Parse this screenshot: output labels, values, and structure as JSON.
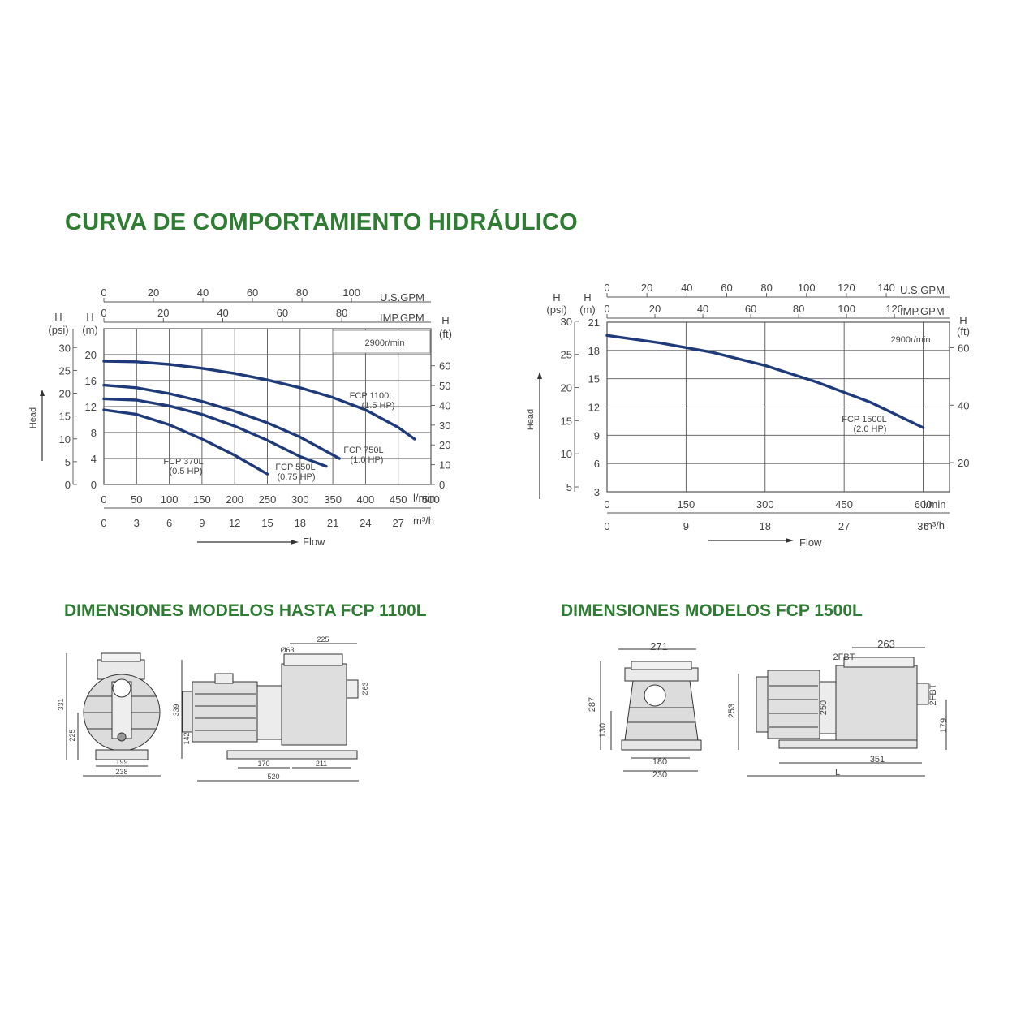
{
  "main_title": "CURVA DE COMPORTAMIENTO HIDRÁULICO",
  "dim_title_left": "DIMENSIONES MODELOS HASTA FCP 1100L",
  "dim_title_right": "DIMENSIONES MODELOS FCP 1500L",
  "colors": {
    "title": "#2e7d32",
    "curve": "#1f3a7a",
    "grid": "#555555"
  },
  "chart_data": [
    {
      "type": "line",
      "speed_label": "2900r/min",
      "xlabel": "Flow",
      "ylabel": "Head",
      "x_unit": "l/min",
      "xlim": [
        0,
        500
      ],
      "ylim": [
        0,
        24
      ],
      "x_ticks_lmin": [
        "0",
        "50",
        "100",
        "150",
        "200",
        "250",
        "300",
        "350",
        "400",
        "450",
        "500"
      ],
      "x_ticks_m3h": [
        "0",
        "3",
        "6",
        "9",
        "12",
        "15",
        "18",
        "21",
        "24",
        "27"
      ],
      "x_ticks_m3h_unit": "m³/h",
      "x_ticks_usgpm": [
        "0",
        "20",
        "40",
        "60",
        "80",
        "100"
      ],
      "x_ticks_usgpm_unit": "U.S.GPM",
      "x_ticks_impgpm": [
        "0",
        "20",
        "40",
        "60",
        "80"
      ],
      "x_ticks_impgpm_unit": "IMP.GPM",
      "y_ticks_m": [
        "0",
        "4",
        "8",
        "12",
        "16",
        "20"
      ],
      "y_ticks_psi": [
        "0",
        "5",
        "10",
        "15",
        "20",
        "25",
        "30"
      ],
      "y_ticks_ft": [
        "0",
        "10",
        "20",
        "30",
        "40",
        "50",
        "60"
      ],
      "y_unit_m": "(m)",
      "y_unit_psi": "(psi)",
      "y_unit_ft": "(ft)",
      "y_letter": "H",
      "series": [
        {
          "name": "FCP 370L",
          "hp": "(0.5 HP)",
          "x": [
            0,
            50,
            100,
            150,
            200,
            250
          ],
          "y": [
            11.5,
            10.8,
            9.2,
            7.0,
            4.5,
            1.6
          ]
        },
        {
          "name": "FCP 550L",
          "hp": "(0.75 HP)",
          "x": [
            0,
            50,
            100,
            150,
            200,
            250,
            300,
            340
          ],
          "y": [
            13.2,
            13.0,
            12.1,
            10.8,
            9.0,
            6.8,
            4.3,
            2.8
          ]
        },
        {
          "name": "FCP 750L",
          "hp": "(1.0 HP)",
          "x": [
            0,
            50,
            100,
            150,
            200,
            250,
            300,
            360
          ],
          "y": [
            15.3,
            14.9,
            14.0,
            12.8,
            11.3,
            9.5,
            7.3,
            4.0
          ]
        },
        {
          "name": "FCP 1100L",
          "hp": "(1.5 HP)",
          "x": [
            0,
            50,
            100,
            150,
            200,
            250,
            300,
            350,
            400,
            450,
            475
          ],
          "y": [
            19.0,
            18.9,
            18.5,
            17.9,
            17.1,
            16.1,
            14.9,
            13.4,
            11.5,
            8.8,
            7.0
          ]
        }
      ]
    },
    {
      "type": "line",
      "speed_label": "2900r/min",
      "xlabel": "Flow",
      "ylabel": "Head",
      "x_unit": "l/min",
      "xlim": [
        0,
        650
      ],
      "ylim": [
        3,
        21
      ],
      "x_ticks_lmin": [
        "0",
        "150",
        "300",
        "450",
        "600"
      ],
      "x_ticks_m3h": [
        "0",
        "9",
        "18",
        "27",
        "36"
      ],
      "x_ticks_m3h_unit": "m³/h",
      "x_ticks_usgpm": [
        "0",
        "20",
        "40",
        "60",
        "80",
        "100",
        "120",
        "140"
      ],
      "x_ticks_usgpm_unit": "U.S.GPM",
      "x_ticks_impgpm": [
        "0",
        "20",
        "40",
        "60",
        "80",
        "100",
        "120"
      ],
      "x_ticks_impgpm_unit": "IMP.GPM",
      "y_ticks_m": [
        "3",
        "6",
        "9",
        "12",
        "15",
        "18",
        "21"
      ],
      "y_ticks_psi": [
        "5",
        "10",
        "15",
        "20",
        "25",
        "30"
      ],
      "y_ticks_ft": [
        "20",
        "40",
        "60"
      ],
      "y_unit_m": "(m)",
      "y_unit_psi": "(psi)",
      "y_unit_ft": "(ft)",
      "y_letter": "H",
      "series": [
        {
          "name": "FCP 1500L",
          "hp": "(2.0 HP)",
          "x": [
            0,
            100,
            200,
            300,
            400,
            500,
            600
          ],
          "y": [
            19.6,
            18.8,
            17.8,
            16.4,
            14.6,
            12.5,
            9.8
          ]
        }
      ]
    }
  ],
  "dims_left": {
    "front_height": "331",
    "front_axis": "225",
    "front_base": "199",
    "front_width": "238",
    "side_height": "339",
    "side_axis": "142",
    "side_top": "225",
    "side_port": "Ø63",
    "side_port_side": "Ø63",
    "side_base": "170",
    "side_rear": "211",
    "side_length": "520"
  },
  "dims_right": {
    "front_width": "271",
    "front_height": "287",
    "front_axis": "130",
    "front_base": "180",
    "front_total": "230",
    "side_top": "263",
    "side_port": "2FBT",
    "side_port_side": "2FBT",
    "side_height": "253",
    "side_axis": "250",
    "side_right_h": "179",
    "side_base": "351",
    "side_length": "L"
  }
}
